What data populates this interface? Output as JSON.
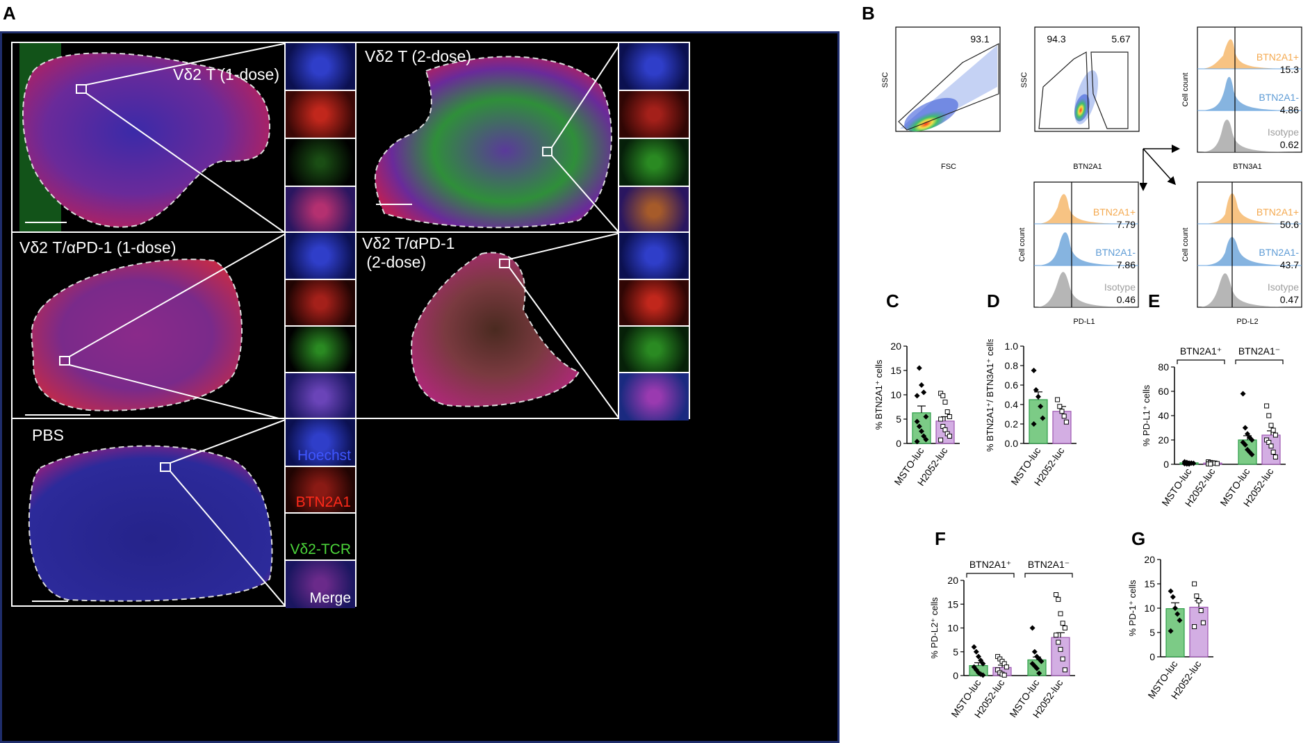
{
  "figure_labels": {
    "A": "A",
    "B": "B",
    "C": "C",
    "D": "D",
    "E": "E",
    "F": "F",
    "G": "G"
  },
  "panelA": {
    "tiles": [
      {
        "id": "vd2-1dose",
        "label": "Vδ2 T (1-dose)"
      },
      {
        "id": "vd2-2dose",
        "label": "Vδ2 T (2-dose)"
      },
      {
        "id": "vd2-apd1-1dose",
        "label": "Vδ2 T/αPD-1 (1-dose)"
      },
      {
        "id": "vd2-apd1-2dose",
        "label": "Vδ2 T/αPD-1\n (2-dose)"
      },
      {
        "id": "pbs",
        "label": "PBS"
      }
    ],
    "channels": [
      {
        "name": "Hoechst",
        "color": "#3f56ff"
      },
      {
        "name": "BTN2A1",
        "color": "#ff2a1a"
      },
      {
        "name": "Vδ2-TCR",
        "color": "#4cd63a"
      },
      {
        "name": "Merge",
        "color": "#ffffff"
      }
    ]
  },
  "panelB": {
    "scatter1": {
      "xlabel": "FSC",
      "ylabel": "SSC",
      "gate_value": "93.1"
    },
    "scatter2": {
      "xlabel": "BTN2A1",
      "ylabel": "SSC",
      "gate_left": "94.3",
      "gate_right": "5.67"
    },
    "histograms": [
      {
        "xlabel": "BTN3A1",
        "ylabel": "Cell count",
        "rows": [
          {
            "name": "BTN2A1+",
            "value": "15.3",
            "color": "#f4a94f"
          },
          {
            "name": "BTN2A1-",
            "value": "4.86",
            "color": "#5d9bd5"
          },
          {
            "name": "Isotype",
            "value": "0.62",
            "color": "#9e9e9e"
          }
        ]
      },
      {
        "xlabel": "PD-L1",
        "ylabel": "Cell count",
        "rows": [
          {
            "name": "BTN2A1+",
            "value": "7.79",
            "color": "#f4a94f"
          },
          {
            "name": "BTN2A1-",
            "value": "7.86",
            "color": "#5d9bd5"
          },
          {
            "name": "Isotype",
            "value": "0.46",
            "color": "#9e9e9e"
          }
        ]
      },
      {
        "xlabel": "PD-L2",
        "ylabel": "Cell count",
        "rows": [
          {
            "name": "BTN2A1+",
            "value": "50.6",
            "color": "#f4a94f"
          },
          {
            "name": "BTN2A1-",
            "value": "43.7",
            "color": "#5d9bd5"
          },
          {
            "name": "Isotype",
            "value": "0.47",
            "color": "#9e9e9e"
          }
        ]
      }
    ]
  },
  "colors": {
    "msto": "#7ccb86",
    "h2052": "#d3aee3",
    "msto_edge": "#2b9c47",
    "h2052_edge": "#9c55b0"
  },
  "chart_data": [
    {
      "id": "C",
      "type": "bar",
      "ylabel": "% BTN2A1⁺ cells",
      "ylim": [
        0,
        20
      ],
      "yticks": [
        "0",
        "5",
        "10",
        "15",
        "20"
      ],
      "categories": [
        "MSTO-luc",
        "H2052-luc"
      ],
      "values": [
        6.3,
        4.6
      ],
      "errors": [
        1.4,
        0.9
      ],
      "points": [
        [
          9.8,
          15.5,
          12,
          10.5,
          5.5,
          4.5,
          3.5,
          2.5,
          1.5,
          0.8,
          0.4
        ],
        [
          10.3,
          9.8,
          8.5,
          6.5,
          5.5,
          5,
          3.5,
          2.8,
          2,
          1.5,
          0.7
        ]
      ]
    },
    {
      "id": "D",
      "type": "bar",
      "ylabel": "% BTN2A1⁺/ BTN3A1⁺ cells",
      "ylim": [
        0,
        1.0
      ],
      "yticks": [
        "0.0",
        "0.2",
        "0.4",
        "0.6",
        "0.8",
        "1.0"
      ],
      "categories": [
        "MSTO-luc",
        "H2052-luc"
      ],
      "values": [
        0.45,
        0.33
      ],
      "errors": [
        0.08,
        0.05
      ],
      "points": [
        [
          0.75,
          0.55,
          0.48,
          0.38,
          0.26,
          0.2
        ],
        [
          0.45,
          0.38,
          0.33,
          0.28,
          0.22
        ]
      ]
    },
    {
      "id": "E",
      "type": "bar",
      "ylabel": "% PD-L1⁺ cells",
      "ylim": [
        0,
        80
      ],
      "yticks": [
        "0",
        "20",
        "40",
        "60",
        "80"
      ],
      "categories": [
        "MSTO-luc",
        "H2052-luc",
        "MSTO-luc",
        "H2052-luc"
      ],
      "groups": [
        "BTN2A1⁺",
        "BTN2A1⁻"
      ],
      "values": [
        1.2,
        1.0,
        20,
        24
      ],
      "errors": [
        0.3,
        0.3,
        3.5,
        3.5
      ],
      "points": [
        [
          2,
          1.5,
          1,
          1,
          0.8,
          0.5,
          0.3,
          0.2
        ],
        [
          2,
          1.5,
          1.2,
          1,
          0.6,
          0.3,
          0.2
        ],
        [
          58,
          30,
          25,
          22,
          20,
          18,
          16,
          12,
          10,
          8
        ],
        [
          48,
          40,
          32,
          28,
          24,
          20,
          18,
          15,
          10,
          6
        ]
      ]
    },
    {
      "id": "F",
      "type": "bar",
      "ylabel": "% PD-L2⁺ cells",
      "ylim": [
        0,
        20
      ],
      "yticks": [
        "0",
        "5",
        "10",
        "15",
        "20"
      ],
      "categories": [
        "MSTO-luc",
        "H2052-luc",
        "MSTO-luc",
        "H2052-luc"
      ],
      "groups": [
        "BTN2A1⁺",
        "BTN2A1⁻"
      ],
      "values": [
        2.1,
        1.7,
        3.3,
        8
      ],
      "errors": [
        0.6,
        0.5,
        0.6,
        1
      ],
      "points": [
        [
          6,
          5,
          4,
          3.2,
          2.5,
          1.8,
          1.2,
          0.6,
          0.3,
          0.1
        ],
        [
          4,
          3.5,
          3,
          2.5,
          1.8,
          1.2,
          0.6,
          0.3,
          0.1
        ],
        [
          10,
          5,
          4,
          3.5,
          3,
          2.5,
          2,
          1.5,
          0.5
        ],
        [
          17,
          16,
          13,
          11,
          10,
          8.5,
          7,
          5.5,
          3.5,
          1.2
        ]
      ]
    },
    {
      "id": "G",
      "type": "bar",
      "ylabel": "% PD-1⁺ cells",
      "ylim": [
        0,
        20
      ],
      "yticks": [
        "0",
        "5",
        "10",
        "15",
        "20"
      ],
      "categories": [
        "MSTO-luc",
        "H2052-luc"
      ],
      "values": [
        9.9,
        10.2
      ],
      "errors": [
        1.2,
        1.3
      ],
      "points": [
        [
          13.5,
          12.3,
          10,
          8.8,
          7.5,
          5.3
        ],
        [
          15,
          12.5,
          11.5,
          9.5,
          7,
          6.2
        ]
      ]
    }
  ]
}
